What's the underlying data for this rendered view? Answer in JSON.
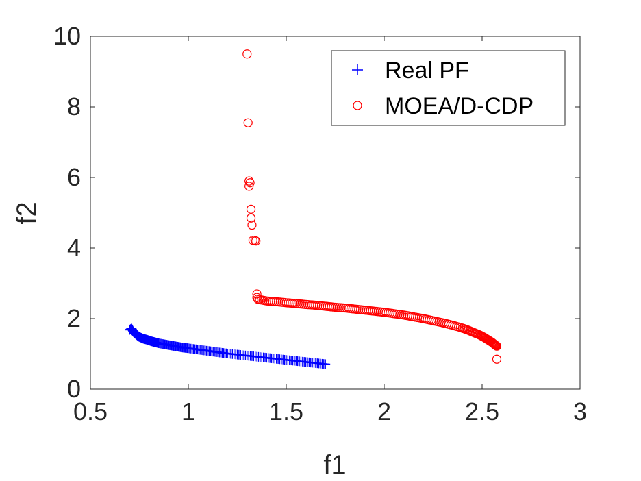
{
  "chart_data": {
    "type": "scatter",
    "title": "",
    "xlabel": "f1",
    "ylabel": "f2",
    "xlim": [
      0.5,
      3
    ],
    "ylim": [
      0,
      10
    ],
    "xticks": [
      "0.5",
      "1",
      "1.5",
      "2",
      "2.5",
      "3"
    ],
    "xtick_values": [
      0.5,
      1,
      1.5,
      2,
      2.5,
      3
    ],
    "yticks": [
      "0",
      "2",
      "4",
      "6",
      "8",
      "10"
    ],
    "ytick_values": [
      0,
      2,
      4,
      6,
      8,
      10
    ],
    "grid": false,
    "legend_position": "top-right",
    "series": [
      {
        "name": "Real PF",
        "marker": "plus",
        "color": "#0000ff",
        "x": [
          0.7,
          0.71,
          0.72,
          0.73,
          0.74,
          0.75,
          0.77,
          0.79,
          0.81,
          0.83,
          0.85,
          0.88,
          0.91,
          0.94,
          0.97,
          1.0,
          1.04,
          1.08,
          1.12,
          1.16,
          1.2,
          1.25,
          1.3,
          1.35,
          1.4,
          1.45,
          1.5,
          1.55,
          1.6,
          1.65,
          1.7
        ],
        "y": [
          1.68,
          1.72,
          1.62,
          1.57,
          1.52,
          1.48,
          1.43,
          1.4,
          1.36,
          1.33,
          1.3,
          1.27,
          1.24,
          1.21,
          1.18,
          1.16,
          1.13,
          1.1,
          1.07,
          1.04,
          1.01,
          0.98,
          0.95,
          0.92,
          0.89,
          0.86,
          0.83,
          0.8,
          0.77,
          0.74,
          0.71
        ]
      },
      {
        "name": "MOEA/D-CDP",
        "marker": "circle",
        "color": "#ff0000",
        "x": [
          1.3,
          1.305,
          1.31,
          1.315,
          1.31,
          1.32,
          1.32,
          1.325,
          1.33,
          1.34,
          1.345,
          1.35,
          1.35,
          1.355,
          1.4,
          1.45,
          1.5,
          1.55,
          1.6,
          1.65,
          1.7,
          1.75,
          1.8,
          1.85,
          1.9,
          1.95,
          2.0,
          2.05,
          2.1,
          2.15,
          2.2,
          2.25,
          2.3,
          2.35,
          2.4,
          2.43,
          2.46,
          2.49,
          2.51,
          2.53,
          2.55,
          2.565,
          2.575,
          2.575
        ],
        "y": [
          9.5,
          7.55,
          5.9,
          5.85,
          5.75,
          5.1,
          4.85,
          4.65,
          4.22,
          4.22,
          4.2,
          2.7,
          2.6,
          2.55,
          2.5,
          2.48,
          2.45,
          2.43,
          2.4,
          2.38,
          2.35,
          2.32,
          2.3,
          2.27,
          2.24,
          2.21,
          2.18,
          2.14,
          2.1,
          2.05,
          2.0,
          1.94,
          1.88,
          1.81,
          1.73,
          1.67,
          1.6,
          1.53,
          1.47,
          1.4,
          1.33,
          1.26,
          1.22,
          0.85
        ]
      }
    ]
  }
}
